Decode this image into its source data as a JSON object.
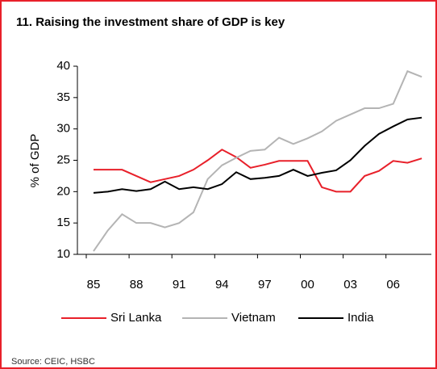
{
  "chart_data": {
    "type": "line",
    "title": "11. Raising the investment share of GDP is key",
    "y_label": "% of GDP",
    "source": "Source: CEIC, HSBC",
    "categories": [
      "85",
      null,
      null,
      "88",
      null,
      null,
      "91",
      null,
      null,
      "94",
      null,
      null,
      "97",
      null,
      null,
      "00",
      null,
      null,
      "03",
      null,
      null,
      "06",
      null,
      null
    ],
    "ylim": [
      10,
      40
    ],
    "yticks": [
      10,
      15,
      20,
      25,
      30,
      35,
      40
    ],
    "series": [
      {
        "name": "Sri Lanka",
        "color": "#e8202a",
        "values": [
          23.5,
          23.5,
          23.5,
          22.5,
          21.5,
          22,
          22.5,
          23.5,
          25,
          26.7,
          25.5,
          23.8,
          24.3,
          24.9,
          24.9,
          24.9,
          20.7,
          20,
          20,
          22.5,
          23.3,
          24.9,
          24.6,
          25.3
        ]
      },
      {
        "name": "Vietnam",
        "color": "#b4b4b4",
        "values": [
          10.5,
          13.8,
          16.4,
          15,
          15,
          14.3,
          15,
          16.7,
          22,
          24.2,
          25.4,
          26.5,
          26.7,
          28.6,
          27.6,
          28.5,
          29.6,
          31.3,
          32.3,
          33.3,
          33.3,
          34,
          39.2,
          38.3
        ]
      },
      {
        "name": "India",
        "color": "#000000",
        "values": [
          19.8,
          20,
          20.4,
          20.1,
          20.4,
          21.6,
          20.4,
          20.7,
          20.4,
          21.2,
          23.1,
          22,
          22.2,
          22.5,
          23.5,
          22.5,
          23,
          23.4,
          25,
          27.3,
          29.2,
          30.4,
          31.5,
          31.8
        ]
      }
    ]
  }
}
